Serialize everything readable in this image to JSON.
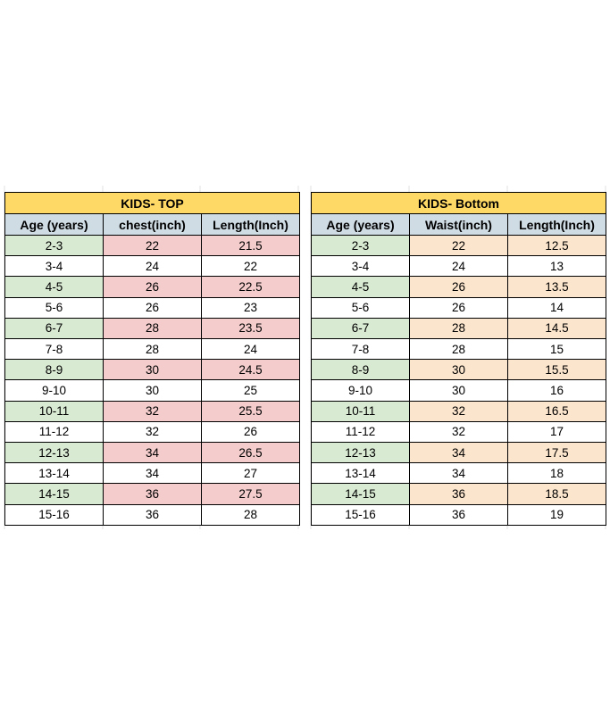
{
  "tables": [
    {
      "title": "KIDS- TOP",
      "headers": [
        "Age (years)",
        "chest(inch)",
        "Length(Inch)"
      ],
      "rows": [
        [
          "2-3",
          22,
          21.5
        ],
        [
          "3-4",
          24,
          22
        ],
        [
          "4-5",
          26,
          22.5
        ],
        [
          "5-6",
          26,
          23
        ],
        [
          "6-7",
          28,
          23.5
        ],
        [
          "7-8",
          28,
          24
        ],
        [
          "8-9",
          30,
          24.5
        ],
        [
          "9-10",
          30,
          25
        ],
        [
          "10-11",
          32,
          25.5
        ],
        [
          "11-12",
          32,
          26
        ],
        [
          "12-13",
          34,
          26.5
        ],
        [
          "13-14",
          34,
          27
        ],
        [
          "14-15",
          36,
          27.5
        ],
        [
          "15-16",
          36,
          28
        ]
      ]
    },
    {
      "title": "KIDS- Bottom",
      "headers": [
        "Age (years)",
        "Waist(inch)",
        "Length(Inch)"
      ],
      "rows": [
        [
          "2-3",
          22,
          12.5
        ],
        [
          "3-4",
          24,
          13
        ],
        [
          "4-5",
          26,
          13.5
        ],
        [
          "5-6",
          26,
          14
        ],
        [
          "6-7",
          28,
          14.5
        ],
        [
          "7-8",
          28,
          15
        ],
        [
          "8-9",
          30,
          15.5
        ],
        [
          "9-10",
          30,
          16
        ],
        [
          "10-11",
          32,
          16.5
        ],
        [
          "11-12",
          32,
          17
        ],
        [
          "12-13",
          34,
          17.5
        ],
        [
          "13-14",
          34,
          18
        ],
        [
          "14-15",
          36,
          18.5
        ],
        [
          "15-16",
          36,
          19
        ]
      ]
    }
  ]
}
